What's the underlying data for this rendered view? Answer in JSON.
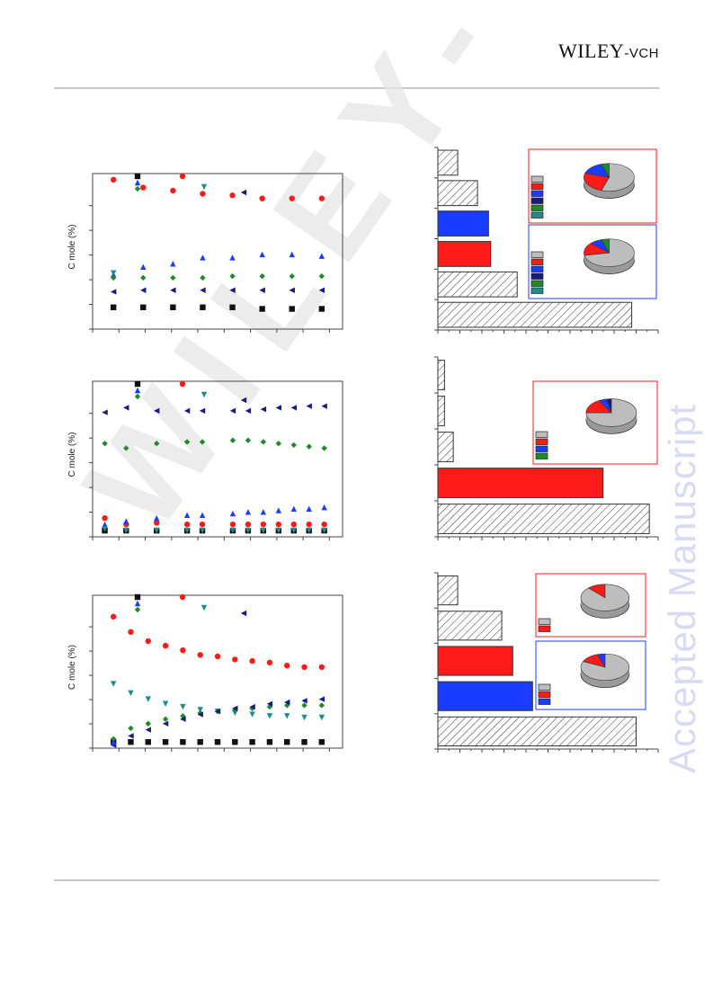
{
  "header": {
    "publisher_main": "WILEY",
    "publisher_suffix": "-VCH"
  },
  "watermark": "Accepted Manuscript",
  "diagonal_watermark": "WILEY-VCH",
  "colors": {
    "black": "#111111",
    "red": "#ff1a1a",
    "blue": "#1a3cff",
    "teal": "#1e8c8c",
    "green": "#1f8a2a",
    "navy": "#1a1a80",
    "gray": "#bdbdbd",
    "rule": "#c8c8c8"
  },
  "chart_data": [
    {
      "type": "scatter",
      "ylabel": "C mole (%)",
      "series": [
        {
          "color": "black",
          "marker": "square",
          "points": [
            [
              0,
              14
            ],
            [
              1,
              14
            ],
            [
              2,
              14
            ],
            [
              3,
              14
            ],
            [
              4,
              14
            ],
            [
              5,
              13
            ],
            [
              6,
              13
            ],
            [
              7,
              13
            ]
          ]
        },
        {
          "color": "red",
          "marker": "circle",
          "points": [
            [
              0,
              96
            ],
            [
              1,
              91
            ],
            [
              2,
              89
            ],
            [
              3,
              87
            ],
            [
              4,
              86
            ],
            [
              5,
              84
            ],
            [
              6,
              84
            ],
            [
              7,
              84
            ]
          ]
        },
        {
          "color": "blue",
          "marker": "triangle-up",
          "points": [
            [
              0,
              35
            ],
            [
              1,
              40
            ],
            [
              2,
              42
            ],
            [
              3,
              46
            ],
            [
              4,
              46
            ],
            [
              5,
              48
            ],
            [
              6,
              48
            ],
            [
              7,
              47
            ]
          ]
        },
        {
          "color": "green",
          "marker": "diamond",
          "points": [
            [
              0,
              33
            ],
            [
              1,
              33
            ],
            [
              2,
              33
            ],
            [
              3,
              33
            ],
            [
              4,
              34
            ],
            [
              5,
              34
            ],
            [
              6,
              34
            ],
            [
              7,
              34
            ]
          ]
        },
        {
          "color": "navy",
          "marker": "triangle-left",
          "points": [
            [
              0,
              24
            ],
            [
              1,
              25
            ],
            [
              2,
              25
            ],
            [
              3,
              25
            ],
            [
              4,
              25
            ],
            [
              5,
              25
            ],
            [
              6,
              25
            ],
            [
              7,
              25
            ]
          ]
        },
        {
          "color": "teal",
          "marker": "triangle-down",
          "points": [
            [
              0,
              36
            ]
          ]
        }
      ],
      "legend": [
        {
          "color": "black",
          "marker": "square"
        },
        {
          "color": "blue",
          "marker": "triangle-up"
        },
        {
          "color": "green",
          "marker": "diamond"
        },
        {
          "color": "red",
          "marker": "circle"
        },
        {
          "color": "teal",
          "marker": "triangle-down"
        },
        {
          "color": "navy",
          "marker": "triangle-left"
        }
      ]
    },
    {
      "type": "bar",
      "orientation": "horizontal",
      "bars": [
        {
          "fill": "hatch",
          "value": 9
        },
        {
          "fill": "hatch",
          "value": 18
        },
        {
          "fill": "blue",
          "value": 23
        },
        {
          "fill": "red",
          "value": 24
        },
        {
          "fill": "hatch",
          "value": 36
        },
        {
          "fill": "hatch",
          "value": 88
        }
      ],
      "xlim": [
        0,
        100
      ],
      "insets": [
        {
          "border": "red",
          "pie": [
            {
              "color": "gray",
              "value": 55
            },
            {
              "color": "red",
              "value": 25
            },
            {
              "color": "blue",
              "value": 15
            },
            {
              "color": "green",
              "value": 5
            }
          ],
          "legend": [
            "gray",
            "red",
            "blue",
            "navy",
            "green",
            "teal"
          ]
        },
        {
          "border": "blue",
          "pie": [
            {
              "color": "gray",
              "value": 72
            },
            {
              "color": "red",
              "value": 15
            },
            {
              "color": "blue",
              "value": 8
            },
            {
              "color": "green",
              "value": 5
            }
          ],
          "legend": [
            "gray",
            "red",
            "blue",
            "navy",
            "green",
            "teal"
          ]
        }
      ]
    },
    {
      "type": "scatter",
      "ylabel": "C mole (%)",
      "series": [
        {
          "color": "red",
          "marker": "circle",
          "points": [
            [
              -0.2,
              12
            ],
            [
              0.5,
              8
            ],
            [
              1.5,
              9
            ],
            [
              2.5,
              8
            ],
            [
              3,
              8
            ],
            [
              4,
              8
            ],
            [
              4.5,
              8
            ],
            [
              5,
              8
            ],
            [
              5.5,
              8
            ],
            [
              6,
              8
            ],
            [
              6.5,
              8
            ],
            [
              7,
              8
            ]
          ]
        },
        {
          "color": "blue",
          "marker": "triangle-up",
          "points": [
            [
              -0.2,
              8
            ],
            [
              0.5,
              10
            ],
            [
              1.5,
              12
            ],
            [
              2.5,
              14
            ],
            [
              3,
              14
            ],
            [
              4,
              15
            ],
            [
              4.5,
              16
            ],
            [
              5,
              16
            ],
            [
              5.5,
              17
            ],
            [
              6,
              18
            ],
            [
              6.5,
              18
            ],
            [
              7,
              19
            ]
          ]
        },
        {
          "color": "green",
          "marker": "diamond",
          "points": [
            [
              -0.2,
              60
            ],
            [
              0.5,
              57
            ],
            [
              1.5,
              60
            ],
            [
              2.5,
              61
            ],
            [
              3,
              61
            ],
            [
              4,
              62
            ],
            [
              4.5,
              62
            ],
            [
              5,
              61
            ],
            [
              5.5,
              60
            ],
            [
              6,
              59
            ],
            [
              6.5,
              58
            ],
            [
              7,
              57
            ]
          ]
        },
        {
          "color": "navy",
          "marker": "triangle-left",
          "points": [
            [
              -0.2,
              80
            ],
            [
              0.5,
              83
            ],
            [
              1.5,
              81
            ],
            [
              2.5,
              81
            ],
            [
              3,
              81
            ],
            [
              4,
              81
            ],
            [
              4.5,
              81
            ],
            [
              5,
              82
            ],
            [
              5.5,
              83
            ],
            [
              6,
              83
            ],
            [
              6.5,
              84
            ],
            [
              7,
              84
            ]
          ]
        },
        {
          "color": "black",
          "marker": "square",
          "points": [
            [
              -0.2,
              4
            ],
            [
              0.5,
              4
            ],
            [
              1.5,
              4
            ],
            [
              2.5,
              4
            ],
            [
              3,
              4
            ],
            [
              4,
              4
            ],
            [
              4.5,
              4
            ],
            [
              5,
              4
            ],
            [
              5.5,
              4
            ],
            [
              6,
              4
            ],
            [
              6.5,
              4
            ],
            [
              7,
              4
            ]
          ]
        },
        {
          "color": "teal",
          "marker": "triangle-down",
          "points": [
            [
              -0.2,
              5
            ],
            [
              0.5,
              4
            ],
            [
              1.5,
              4
            ],
            [
              2.5,
              4
            ],
            [
              3,
              4
            ],
            [
              4,
              4
            ],
            [
              4.5,
              4
            ],
            [
              5,
              4
            ],
            [
              5.5,
              4
            ],
            [
              6,
              4
            ],
            [
              6.5,
              4
            ],
            [
              7,
              4
            ]
          ]
        }
      ],
      "legend": [
        {
          "color": "black",
          "marker": "square"
        },
        {
          "color": "blue",
          "marker": "triangle-up"
        },
        {
          "color": "green",
          "marker": "diamond"
        },
        {
          "color": "red",
          "marker": "circle"
        },
        {
          "color": "teal",
          "marker": "triangle-down"
        },
        {
          "color": "navy",
          "marker": "triangle-left"
        }
      ]
    },
    {
      "type": "bar",
      "orientation": "horizontal",
      "bars": [
        {
          "fill": "hatch",
          "value": 3
        },
        {
          "fill": "hatch",
          "value": 3
        },
        {
          "fill": "hatch",
          "value": 7
        },
        {
          "fill": "red",
          "value": 75
        },
        {
          "fill": "hatch",
          "value": 96
        }
      ],
      "xlim": [
        0,
        100
      ],
      "insets": [
        {
          "border": "red",
          "pie": [
            {
              "color": "gray",
              "value": 75
            },
            {
              "color": "red",
              "value": 17
            },
            {
              "color": "blue",
              "value": 5
            },
            {
              "color": "navy",
              "value": 3
            }
          ],
          "legend": [
            "gray",
            "red",
            "blue",
            "green"
          ]
        }
      ]
    },
    {
      "type": "scatter",
      "ylabel": "C mole (%)",
      "series": [
        {
          "color": "black",
          "marker": "square",
          "points": [
            [
              0,
              4
            ],
            [
              0.5,
              4
            ],
            [
              1,
              4
            ],
            [
              1.5,
              4
            ],
            [
              2,
              4
            ],
            [
              2.5,
              4
            ],
            [
              3,
              4
            ],
            [
              3.5,
              4
            ],
            [
              4,
              4
            ],
            [
              4.5,
              4
            ],
            [
              5,
              4
            ],
            [
              5.5,
              4
            ],
            [
              6,
              4
            ]
          ]
        },
        {
          "color": "red",
          "marker": "circle",
          "points": [
            [
              0,
              86
            ],
            [
              0.5,
              76
            ],
            [
              1,
              70
            ],
            [
              1.5,
              67
            ],
            [
              2,
              64
            ],
            [
              2.5,
              61
            ],
            [
              3,
              60
            ],
            [
              3.5,
              58
            ],
            [
              4,
              57
            ],
            [
              4.5,
              56
            ],
            [
              5,
              54
            ],
            [
              5.5,
              53
            ],
            [
              6,
              53
            ]
          ]
        },
        {
          "color": "teal",
          "marker": "triangle-down",
          "points": [
            [
              0,
              42
            ],
            [
              0.5,
              36
            ],
            [
              1,
              32
            ],
            [
              1.5,
              29
            ],
            [
              2,
              27
            ],
            [
              2.5,
              25
            ],
            [
              3,
              24
            ],
            [
              3.5,
              23
            ],
            [
              4,
              22
            ],
            [
              4.5,
              21
            ],
            [
              5,
              21
            ],
            [
              5.5,
              20
            ],
            [
              6,
              20
            ]
          ]
        },
        {
          "color": "green",
          "marker": "diamond",
          "points": [
            [
              0,
              6
            ],
            [
              0.5,
              13
            ],
            [
              1,
              16
            ],
            [
              1.5,
              19
            ],
            [
              2,
              21
            ],
            [
              2.5,
              23
            ],
            [
              3,
              24
            ],
            [
              3.5,
              25
            ],
            [
              4,
              26
            ],
            [
              4.5,
              27
            ],
            [
              5,
              28
            ],
            [
              5.5,
              28
            ],
            [
              6,
              28
            ]
          ]
        },
        {
          "color": "navy",
          "marker": "triangle-left",
          "points": [
            [
              0,
              2
            ],
            [
              0.5,
              8
            ],
            [
              1,
              12
            ],
            [
              1.5,
              16
            ],
            [
              2,
              19
            ],
            [
              2.5,
              22
            ],
            [
              3,
              24
            ],
            [
              3.5,
              26
            ],
            [
              4,
              27
            ],
            [
              4.5,
              29
            ],
            [
              5,
              30
            ],
            [
              5.5,
              31
            ],
            [
              6,
              32
            ]
          ]
        },
        {
          "color": "blue",
          "marker": "triangle-up",
          "points": [
            [
              0,
              4
            ]
          ]
        }
      ],
      "legend": [
        {
          "color": "black",
          "marker": "square"
        },
        {
          "color": "blue",
          "marker": "triangle-up"
        },
        {
          "color": "green",
          "marker": "diamond"
        },
        {
          "color": "red",
          "marker": "circle"
        },
        {
          "color": "teal",
          "marker": "triangle-down"
        },
        {
          "color": "navy",
          "marker": "triangle-left"
        }
      ]
    },
    {
      "type": "bar",
      "orientation": "horizontal",
      "bars": [
        {
          "fill": "hatch",
          "value": 9
        },
        {
          "fill": "hatch",
          "value": 29
        },
        {
          "fill": "red",
          "value": 34
        },
        {
          "fill": "blue",
          "value": 43
        },
        {
          "fill": "hatch",
          "value": 90
        }
      ],
      "xlim": [
        0,
        100
      ],
      "insets": [
        {
          "border": "red",
          "pie": [
            {
              "color": "gray",
              "value": 88
            },
            {
              "color": "red",
              "value": 12
            }
          ],
          "legend": [
            "gray",
            "red"
          ]
        },
        {
          "border": "blue",
          "pie": [
            {
              "color": "gray",
              "value": 82
            },
            {
              "color": "red",
              "value": 13
            },
            {
              "color": "blue",
              "value": 5
            }
          ],
          "legend": [
            "gray",
            "red",
            "blue"
          ]
        }
      ]
    }
  ]
}
